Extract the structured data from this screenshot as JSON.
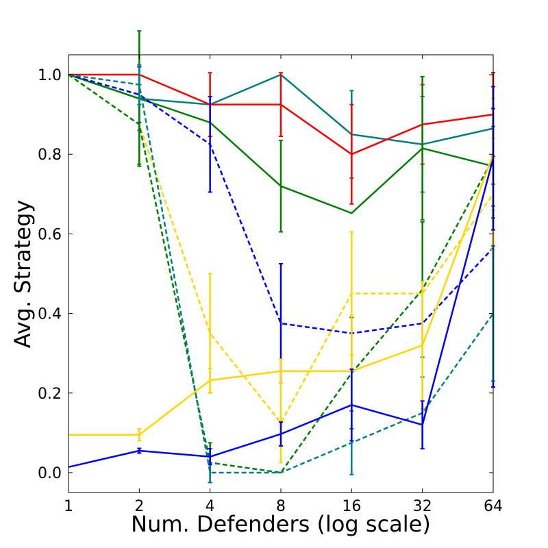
{
  "chart_data": {
    "type": "line",
    "title": "",
    "xlabel": "Num. Defenders (log scale)",
    "ylabel": "Avg. Strategy",
    "x_scale": "log2",
    "x": [
      1,
      2,
      4,
      8,
      16,
      32,
      64
    ],
    "x_tick_labels": [
      "1",
      "2",
      "4",
      "8",
      "16",
      "32",
      "64"
    ],
    "y_ticks": [
      0.0,
      0.2,
      0.4,
      0.6,
      0.8,
      1.0
    ],
    "y_tick_labels": [
      "0.0",
      "0.2",
      "0.4",
      "0.6",
      "0.8",
      "1.0"
    ],
    "ylim": [
      -0.05,
      1.05
    ],
    "grid": false,
    "series": [
      {
        "name": "teal-solid",
        "color": "#008080",
        "style": "solid",
        "values": [
          1.0,
          0.94,
          0.925,
          1.0,
          0.85,
          0.825,
          0.865
        ],
        "errors": [
          0,
          0.08,
          0,
          0,
          0.11,
          0.12,
          0.14
        ]
      },
      {
        "name": "red-solid",
        "color": "#ff0000",
        "style": "solid",
        "values": [
          1.0,
          1.0,
          0.925,
          0.925,
          0.8,
          0.875,
          0.9
        ],
        "errors": [
          0,
          0,
          0.08,
          0.08,
          0.125,
          0.1,
          0.105
        ]
      },
      {
        "name": "green-solid",
        "color": "#008000",
        "style": "solid",
        "values": [
          1.0,
          0.94,
          0.88,
          0.72,
          0.652,
          0.815,
          0.77
        ],
        "errors": [
          0,
          0.17,
          0,
          0.115,
          0,
          0.18,
          0.1
        ]
      },
      {
        "name": "blue-dashed",
        "color": "#0000ff",
        "style": "dashed",
        "values": [
          1.0,
          0.95,
          0.825,
          0.375,
          0.35,
          0.375,
          0.565
        ],
        "errors": [
          0,
          0.07,
          0.12,
          0.15,
          0,
          0,
          0.35
        ]
      },
      {
        "name": "gold-dashed",
        "color": "#ffd700",
        "style": "dashed",
        "values": [
          1.0,
          0.875,
          0.35,
          0.125,
          0.45,
          0.45,
          0.7
        ],
        "errors": [
          0,
          0,
          0.15,
          0.1,
          0.155,
          0,
          0.14
        ]
      },
      {
        "name": "green-dashed",
        "color": "#008000",
        "style": "dashed",
        "values": [
          1.0,
          0.875,
          0.025,
          0.0,
          0.25,
          0.46,
          0.79
        ],
        "errors": [
          0,
          0.1,
          0.05,
          0,
          0.14,
          0.17,
          0.15
        ]
      },
      {
        "name": "teal-dashed",
        "color": "#008080",
        "style": "dashed",
        "values": [
          1.0,
          0.975,
          0.0,
          0.0,
          0.075,
          0.15,
          0.4
        ],
        "errors": [
          0,
          0.05,
          0.025,
          0,
          0.08,
          0.09,
          0.17
        ]
      },
      {
        "name": "gold-solid",
        "color": "#ffd700",
        "style": "solid",
        "values": [
          0.095,
          0.095,
          0.232,
          0.255,
          0.255,
          0.32,
          0.8
        ],
        "errors": [
          0,
          0.015,
          0.03,
          0.03,
          0.14,
          0.16,
          0.14
        ]
      },
      {
        "name": "blue-solid",
        "color": "#0000ff",
        "style": "solid",
        "values": [
          0.014,
          0.055,
          0.04,
          0.097,
          0.17,
          0.12,
          0.79
        ],
        "errors": [
          0,
          0.006,
          0.02,
          0.03,
          0.09,
          0.06,
          0.18
        ]
      }
    ]
  }
}
